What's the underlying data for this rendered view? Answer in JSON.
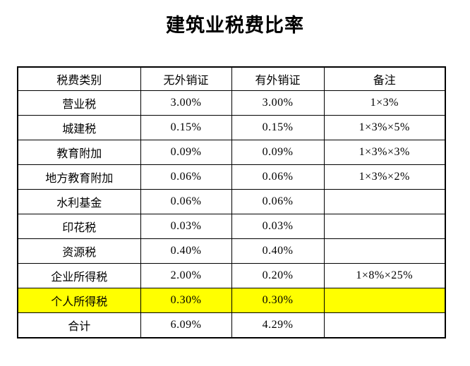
{
  "title": "建筑业税费比率",
  "table": {
    "highlight_color": "#FFFF00",
    "columns": [
      "税费类别",
      "无外销证",
      "有外销证",
      "备注"
    ],
    "rows": [
      {
        "category": "营业税",
        "no_cert": "3.00%",
        "with_cert": "3.00%",
        "note": "1×3%",
        "highlight": false
      },
      {
        "category": "城建税",
        "no_cert": "0.15%",
        "with_cert": "0.15%",
        "note": "1×3%×5%",
        "highlight": false
      },
      {
        "category": "教育附加",
        "no_cert": "0.09%",
        "with_cert": "0.09%",
        "note": "1×3%×3%",
        "highlight": false
      },
      {
        "category": "地方教育附加",
        "no_cert": "0.06%",
        "with_cert": "0.06%",
        "note": "1×3%×2%",
        "highlight": false
      },
      {
        "category": "水利基金",
        "no_cert": "0.06%",
        "with_cert": "0.06%",
        "note": "",
        "highlight": false
      },
      {
        "category": "印花税",
        "no_cert": "0.03%",
        "with_cert": "0.03%",
        "note": "",
        "highlight": false
      },
      {
        "category": "资源税",
        "no_cert": "0.40%",
        "with_cert": "0.40%",
        "note": "",
        "highlight": false
      },
      {
        "category": "企业所得税",
        "no_cert": "2.00%",
        "with_cert": "0.20%",
        "note": "1×8%×25%",
        "highlight": false
      },
      {
        "category": "个人所得税",
        "no_cert": "0.30%",
        "with_cert": "0.30%",
        "note": "",
        "highlight": true
      },
      {
        "category": "合计",
        "no_cert": "6.09%",
        "with_cert": "4.29%",
        "note": "",
        "highlight": false
      }
    ]
  }
}
